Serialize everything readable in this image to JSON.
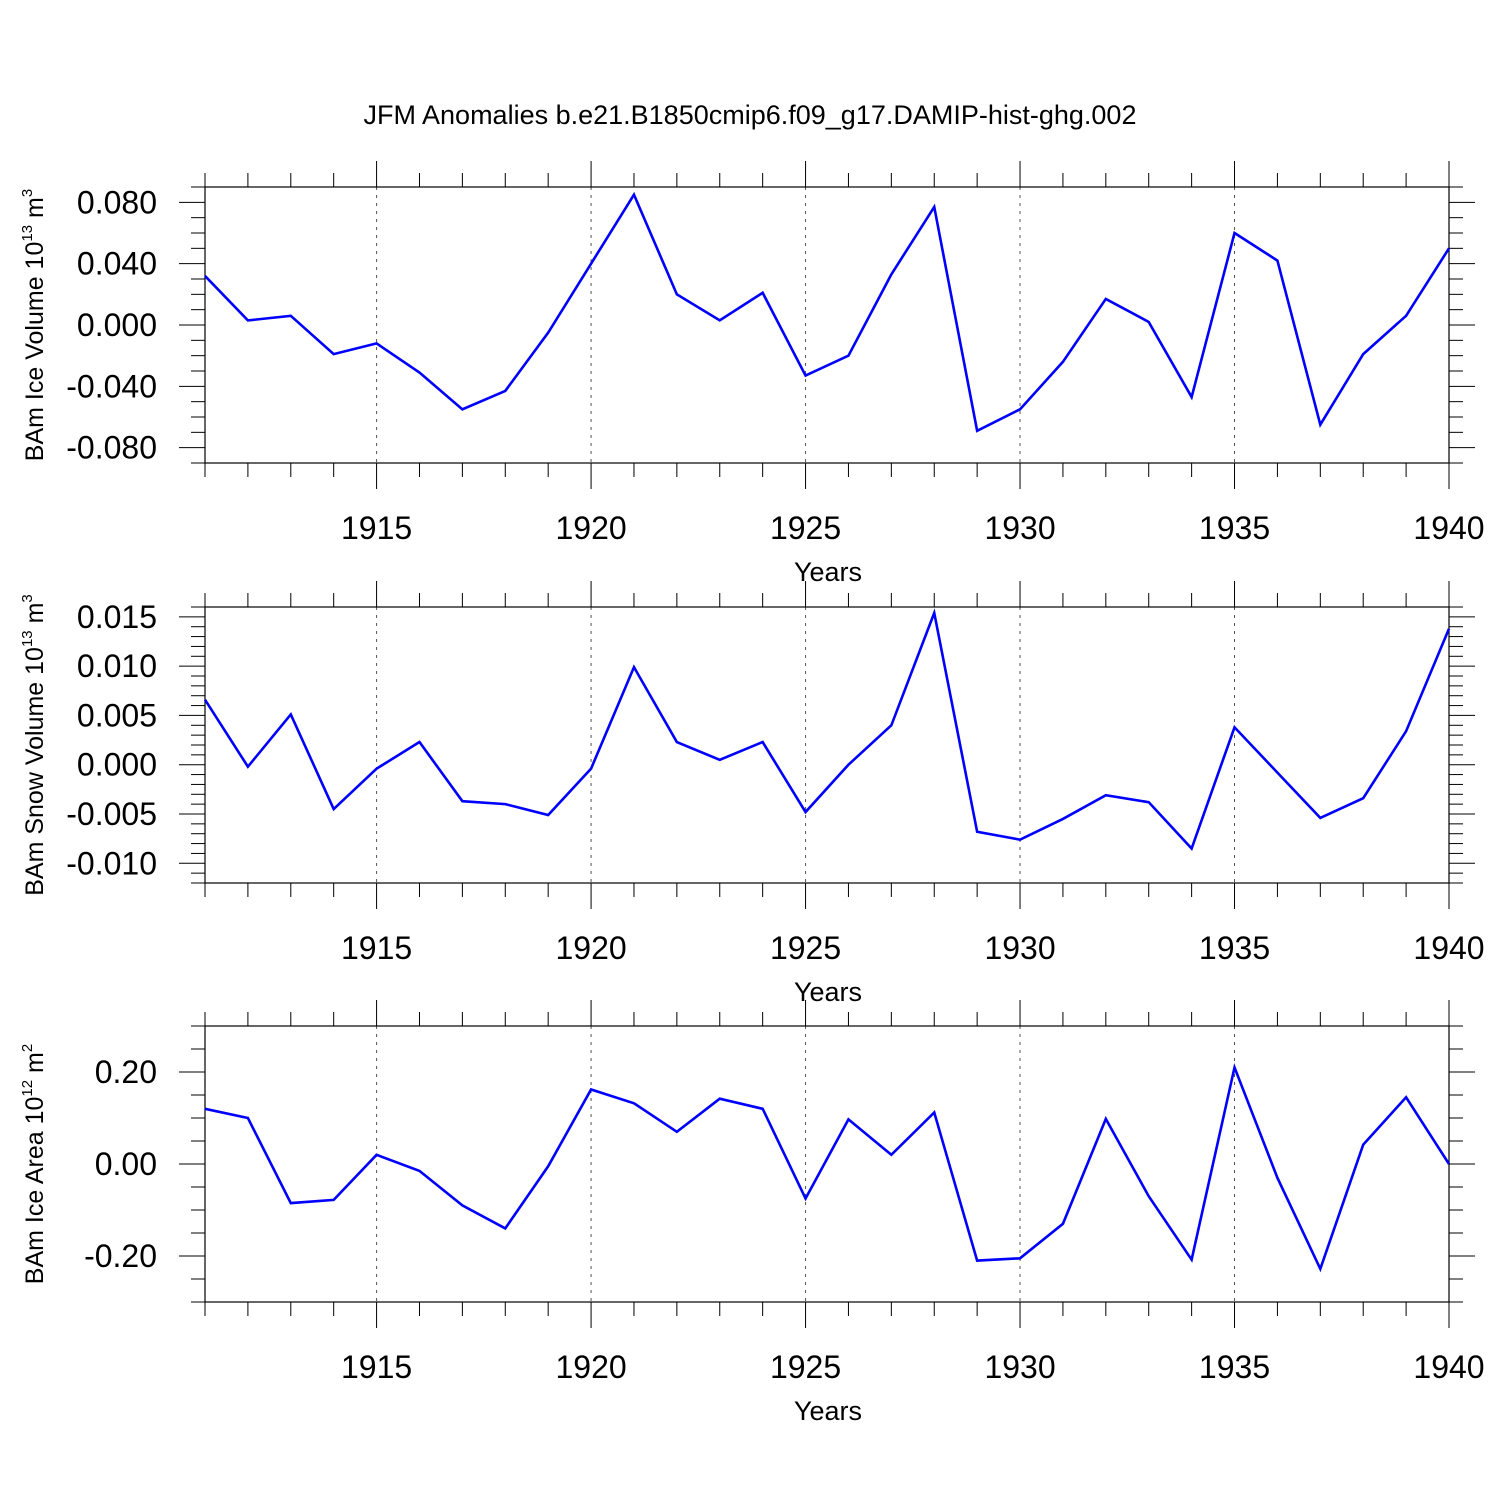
{
  "title": "JFM Anomalies b.e21.B1850cmip6.f09_g17.DAMIP-hist-ghg.002",
  "colors": {
    "line": "#0000ff",
    "axis": "#000000",
    "grid": "#555555"
  },
  "chart_data": [
    {
      "type": "line",
      "ylabel": {
        "text": "BAm Ice Volume 10",
        "exponent": "13",
        "unit": " m",
        "unit_exponent": "3"
      },
      "xlabel": "Years",
      "xlim": [
        1911,
        1940
      ],
      "ylim": [
        -0.09,
        0.09
      ],
      "x_ticks": [
        1915,
        1920,
        1925,
        1930,
        1935,
        1940
      ],
      "x_ticklabels": [
        "1915",
        "1920",
        "1925",
        "1930",
        "1935",
        "1940"
      ],
      "y_ticks": [
        -0.08,
        -0.04,
        0.0,
        0.04,
        0.08
      ],
      "y_ticklabels": [
        "-0.080",
        "-0.040",
        "0.000",
        "0.040",
        "0.080"
      ],
      "y_minor_step": 0.01,
      "grid": "vertical dotted at major x ticks",
      "series": [
        {
          "name": "BAm Ice Volume",
          "x": [
            1911,
            1912,
            1913,
            1914,
            1915,
            1916,
            1917,
            1918,
            1919,
            1920,
            1921,
            1922,
            1923,
            1924,
            1925,
            1926,
            1927,
            1928,
            1929,
            1930,
            1931,
            1932,
            1933,
            1934,
            1935,
            1936,
            1937,
            1938,
            1939,
            1940
          ],
          "values": [
            0.032,
            0.003,
            0.006,
            -0.019,
            -0.012,
            -0.031,
            -0.055,
            -0.043,
            -0.005,
            0.04,
            0.085,
            0.02,
            0.003,
            0.021,
            -0.033,
            -0.02,
            0.033,
            0.077,
            -0.069,
            -0.055,
            -0.024,
            0.017,
            0.002,
            -0.047,
            0.06,
            0.042,
            -0.065,
            -0.019,
            0.006,
            0.05
          ]
        }
      ]
    },
    {
      "type": "line",
      "ylabel": {
        "text": "BAm Snow Volume 10",
        "exponent": "13",
        "unit": " m",
        "unit_exponent": "3"
      },
      "xlabel": "Years",
      "xlim": [
        1911,
        1940
      ],
      "ylim": [
        -0.012,
        0.016
      ],
      "x_ticks": [
        1915,
        1920,
        1925,
        1930,
        1935,
        1940
      ],
      "x_ticklabels": [
        "1915",
        "1920",
        "1925",
        "1930",
        "1935",
        "1940"
      ],
      "y_ticks": [
        -0.01,
        -0.005,
        0.0,
        0.005,
        0.01,
        0.015
      ],
      "y_ticklabels": [
        "-0.010",
        "-0.005",
        "0.000",
        "0.005",
        "0.010",
        "0.015"
      ],
      "y_minor_step": 0.001,
      "grid": "vertical dotted at major x ticks",
      "series": [
        {
          "name": "BAm Snow Volume",
          "x": [
            1911,
            1912,
            1913,
            1914,
            1915,
            1916,
            1917,
            1918,
            1919,
            1920,
            1921,
            1922,
            1923,
            1924,
            1925,
            1926,
            1927,
            1928,
            1929,
            1930,
            1931,
            1932,
            1933,
            1934,
            1935,
            1936,
            1937,
            1938,
            1939,
            1940
          ],
          "values": [
            0.0066,
            -0.0002,
            0.0051,
            -0.0045,
            -0.0004,
            0.0023,
            -0.0037,
            -0.004,
            -0.0051,
            -0.0004,
            0.0099,
            0.0023,
            0.0005,
            0.0023,
            -0.0048,
            0.0,
            0.004,
            0.0154,
            -0.0068,
            -0.0076,
            -0.0055,
            -0.0031,
            -0.0038,
            -0.0085,
            0.0038,
            -0.0008,
            -0.0054,
            -0.0034,
            0.0034,
            0.0138
          ]
        }
      ]
    },
    {
      "type": "line",
      "ylabel": {
        "text": "BAm Ice Area 10",
        "exponent": "12",
        "unit": " m",
        "unit_exponent": "2"
      },
      "xlabel": "Years",
      "xlim": [
        1911,
        1940
      ],
      "ylim": [
        -0.3,
        0.3
      ],
      "x_ticks": [
        1915,
        1920,
        1925,
        1930,
        1935,
        1940
      ],
      "x_ticklabels": [
        "1915",
        "1920",
        "1925",
        "1930",
        "1935",
        "1940"
      ],
      "y_ticks": [
        -0.2,
        0.0,
        0.2
      ],
      "y_ticklabels": [
        "-0.20",
        "0.00",
        "0.20"
      ],
      "y_minor_step": 0.05,
      "grid": "vertical dotted at major x ticks",
      "series": [
        {
          "name": "BAm Ice Area",
          "x": [
            1911,
            1912,
            1913,
            1914,
            1915,
            1916,
            1917,
            1918,
            1919,
            1920,
            1921,
            1922,
            1923,
            1924,
            1925,
            1926,
            1927,
            1928,
            1929,
            1930,
            1931,
            1932,
            1933,
            1934,
            1935,
            1936,
            1937,
            1938,
            1939,
            1940
          ],
          "values": [
            0.12,
            0.1,
            -0.085,
            -0.078,
            0.02,
            -0.015,
            -0.09,
            -0.14,
            -0.005,
            0.162,
            0.132,
            0.07,
            0.142,
            0.12,
            -0.075,
            0.097,
            0.02,
            0.112,
            -0.21,
            -0.205,
            -0.13,
            0.098,
            -0.07,
            -0.208,
            0.21,
            -0.03,
            -0.228,
            0.042,
            0.145,
            0.0
          ]
        }
      ]
    }
  ]
}
